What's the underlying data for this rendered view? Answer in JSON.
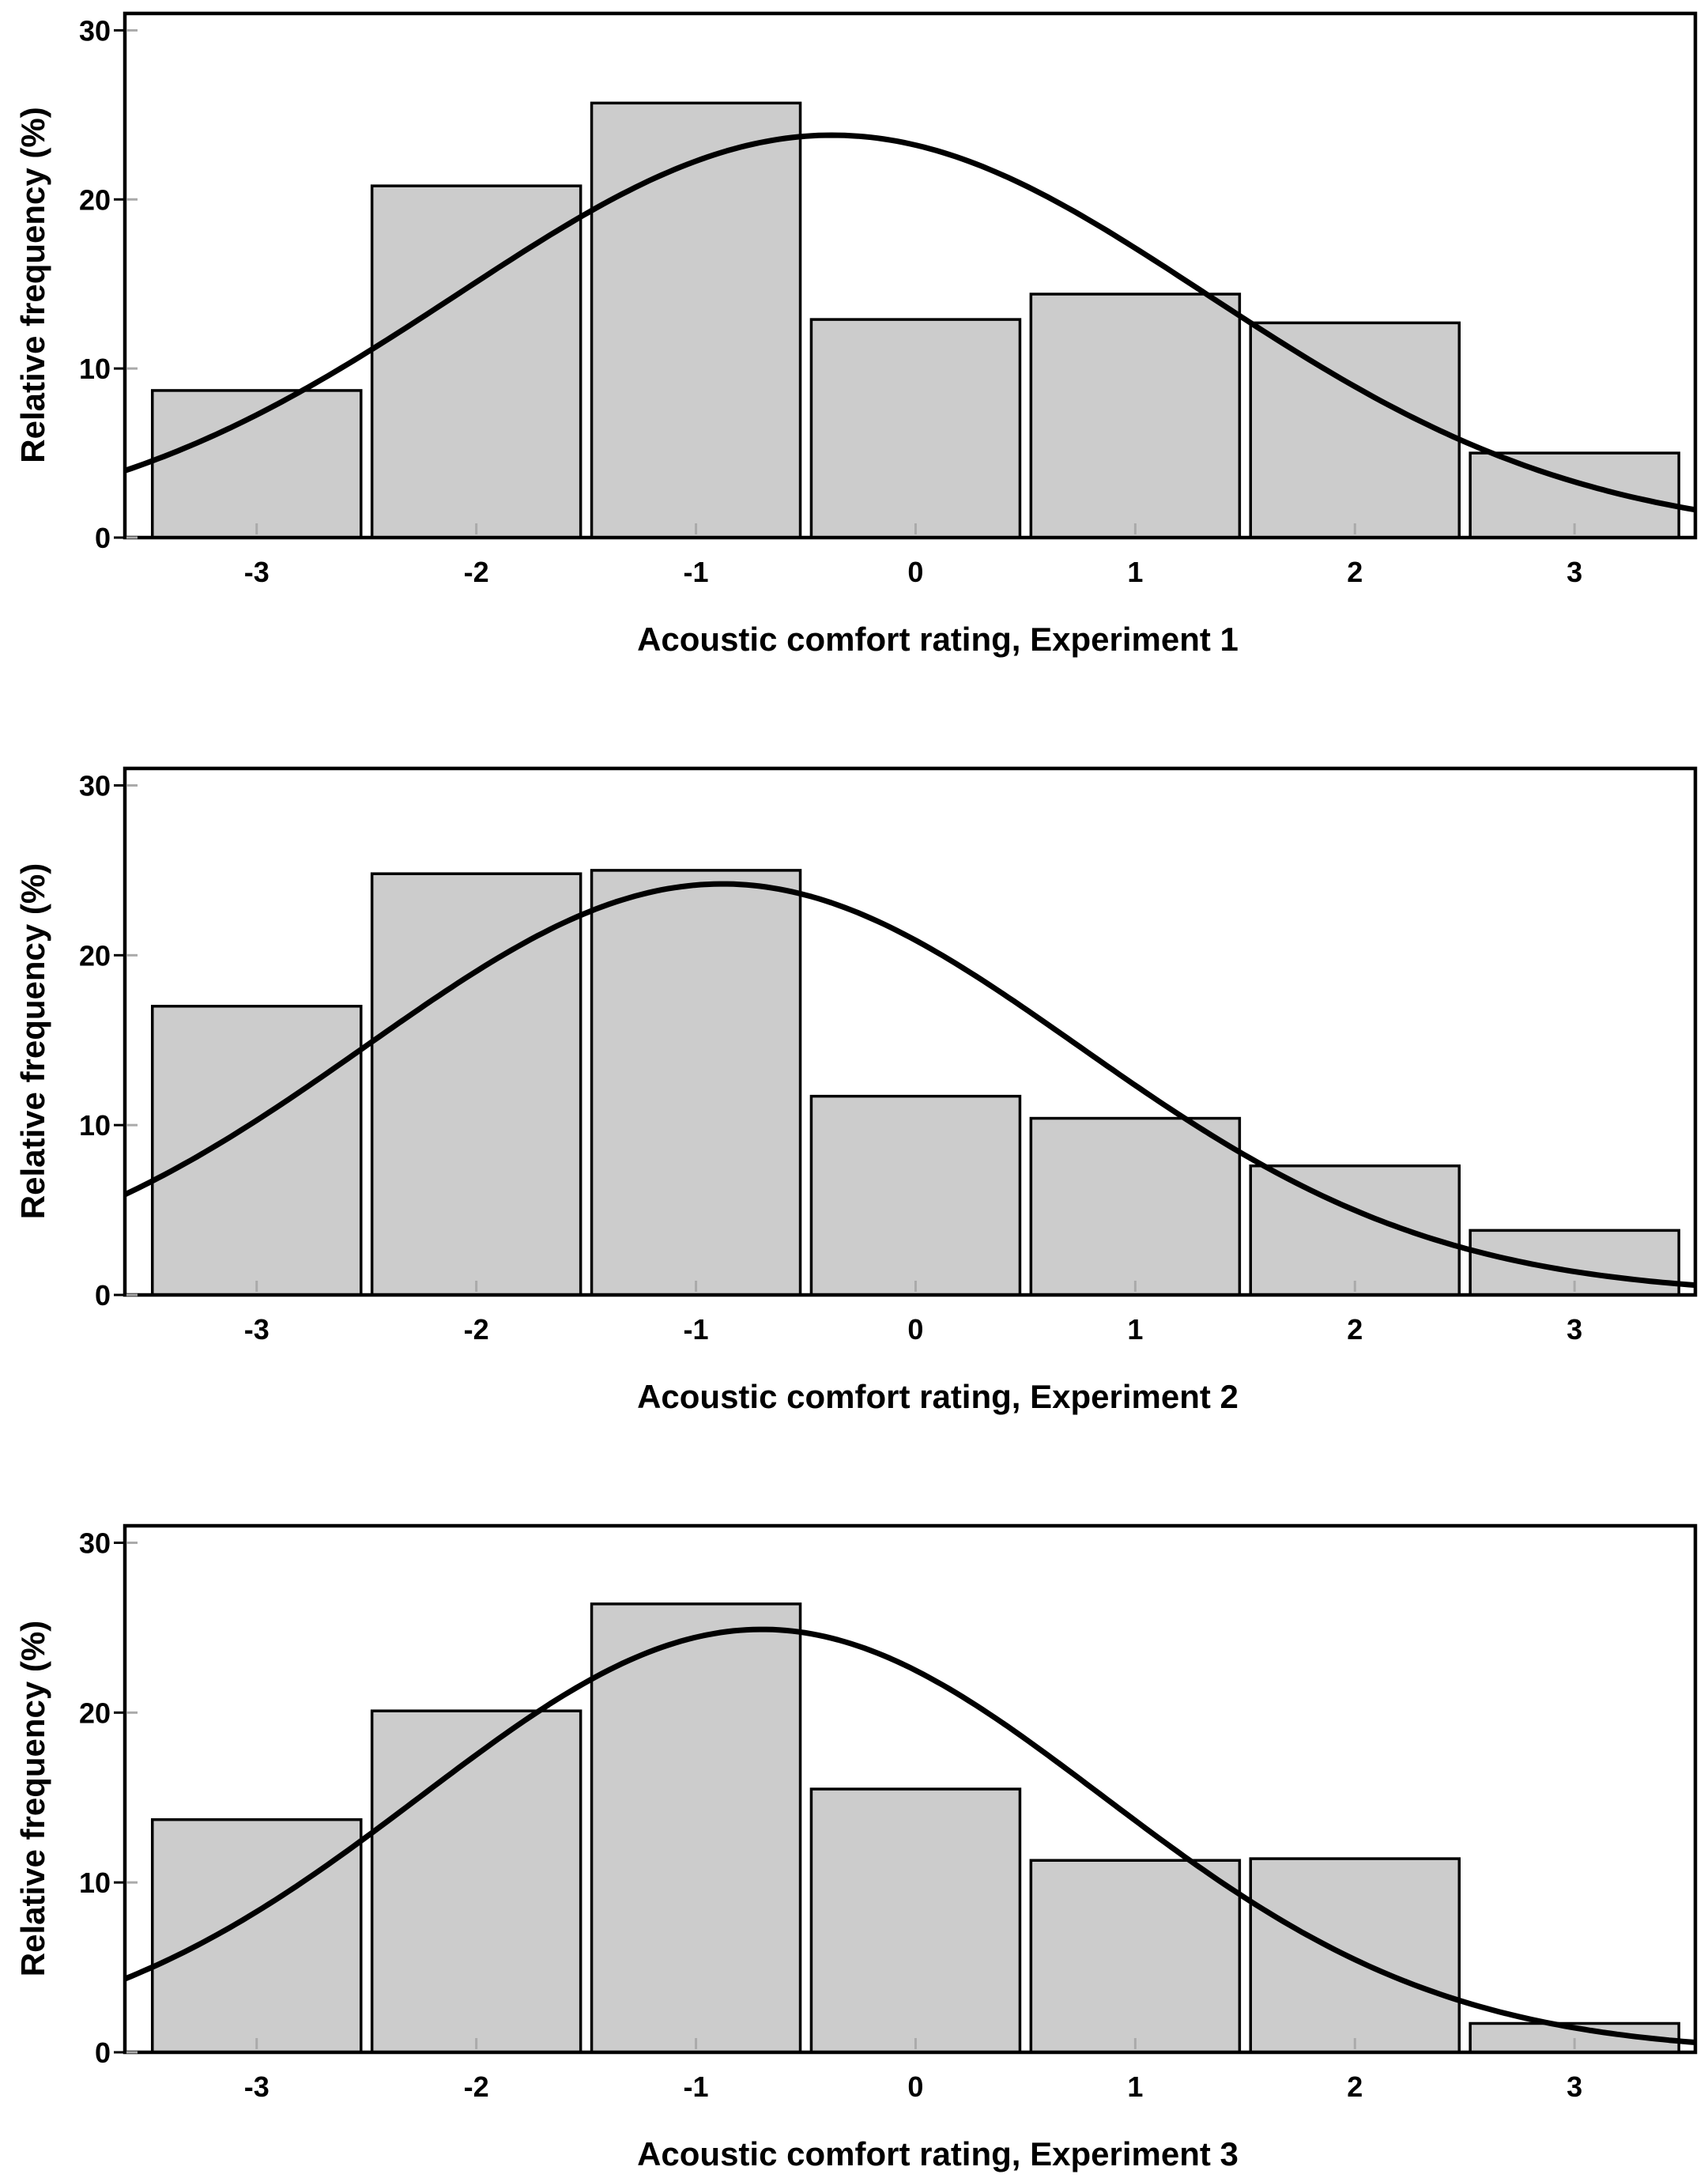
{
  "chart_data": [
    {
      "type": "bar",
      "title": "",
      "xlabel": "Acoustic comfort rating, Experiment 1",
      "ylabel": "Relative frequency (%)",
      "categories": [
        "-3",
        "-2",
        "-1",
        "0",
        "1",
        "2",
        "3"
      ],
      "x_values": [
        -3,
        -2,
        -1,
        0,
        1,
        2,
        3
      ],
      "values": [
        8.7,
        20.8,
        25.7,
        12.9,
        14.4,
        12.7,
        5.0
      ],
      "yticks": [
        0,
        10,
        20,
        30
      ],
      "ylim": [
        0,
        31
      ],
      "xlim": [
        -3.6,
        3.55
      ],
      "overlay": {
        "type": "normal-curve",
        "mean": -0.38,
        "sd": 1.7,
        "peak": 23.8
      },
      "grid": false,
      "legend": "none"
    },
    {
      "type": "bar",
      "title": "",
      "xlabel": "Acoustic comfort rating, Experiment 2",
      "ylabel": "Relative frequency (%)",
      "categories": [
        "-3",
        "-2",
        "-1",
        "0",
        "1",
        "2",
        "3"
      ],
      "x_values": [
        -3,
        -2,
        -1,
        0,
        1,
        2,
        3
      ],
      "values": [
        17.0,
        24.8,
        25.0,
        11.7,
        10.4,
        7.6,
        3.8
      ],
      "yticks": [
        0,
        10,
        20,
        30
      ],
      "ylim": [
        0,
        31
      ],
      "xlim": [
        -3.6,
        3.55
      ],
      "overlay": {
        "type": "normal-curve",
        "mean": -0.88,
        "sd": 1.62,
        "peak": 24.2
      },
      "grid": false,
      "legend": "none"
    },
    {
      "type": "bar",
      "title": "",
      "xlabel": "Acoustic comfort rating, Experiment 3",
      "ylabel": "Relative frequency (%)",
      "categories": [
        "-3",
        "-2",
        "-1",
        "0",
        "1",
        "2",
        "3"
      ],
      "x_values": [
        -3,
        -2,
        -1,
        0,
        1,
        2,
        3
      ],
      "values": [
        13.7,
        20.1,
        26.4,
        15.5,
        11.3,
        11.4,
        1.7
      ],
      "yticks": [
        0,
        10,
        20,
        30
      ],
      "ylim": [
        0,
        31
      ],
      "xlim": [
        -3.6,
        3.55
      ],
      "overlay": {
        "type": "normal-curve",
        "mean": -0.7,
        "sd": 1.55,
        "peak": 24.9
      },
      "grid": false,
      "legend": "none"
    }
  ]
}
